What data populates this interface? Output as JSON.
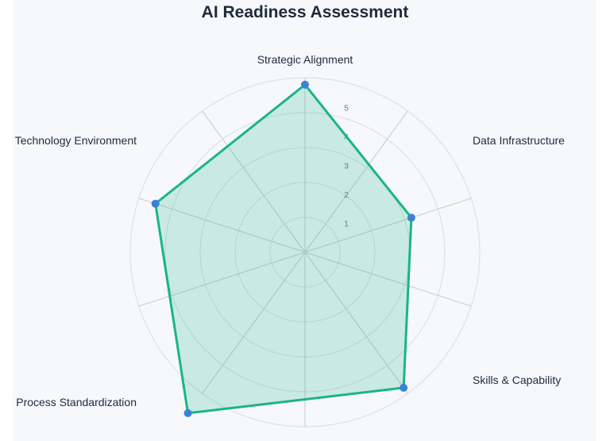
{
  "chart_data": {
    "type": "radar",
    "title": "AI Readiness Assessment",
    "axes": [
      "Strategic Alignment",
      "Data Infrastructure",
      "Skills & Capability",
      "Process Standardization",
      "Technology Environment"
    ],
    "series": [
      {
        "values": [
          4.8,
          3.2,
          4.8,
          5.7,
          4.5
        ]
      }
    ],
    "rlim": [
      0,
      5
    ],
    "ticks": [
      1,
      2,
      3,
      4,
      5
    ],
    "grid": true,
    "legend": "none",
    "colors": {
      "line": "#1bb583",
      "fill": "#1bb583",
      "point": "#3b82d6",
      "grid": "#dde1e7",
      "axis": "#cfd4dc"
    }
  }
}
